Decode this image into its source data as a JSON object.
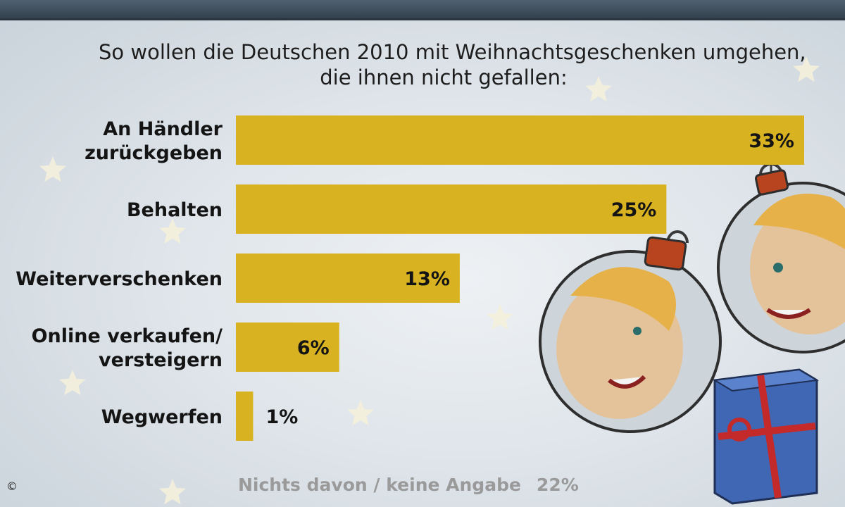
{
  "subtitle": {
    "line1": "So wollen die Deutschen 2010 mit Weihnachtsgeschenken umgehen,",
    "line2": "die ihnen nicht gefallen:"
  },
  "chart_data": {
    "type": "bar",
    "orientation": "horizontal",
    "categories": [
      [
        "An Händler",
        "zurückgeben"
      ],
      [
        "Behalten"
      ],
      [
        "Weiterverschenken"
      ],
      [
        "Online verkaufen/",
        "versteigern"
      ],
      [
        "Wegwerfen"
      ]
    ],
    "values": [
      33,
      25,
      13,
      6,
      1
    ],
    "value_labels": [
      "33%",
      "25%",
      "13%",
      "6%",
      "1%"
    ],
    "unit": "%",
    "bar_color": "#d8b221",
    "xlim": [
      0,
      33
    ],
    "grid": false,
    "legend": "none"
  },
  "footnote": {
    "label": "Nichts davon / keine Angabe",
    "value": "22%"
  },
  "copyright": "©",
  "decoration": {
    "stars_color": "#f4f0dc",
    "ornament_ball_color": "#c9d1d6",
    "ornament_cap_color": "#b8431f",
    "gift_box_color": "#3f67b3",
    "gift_ribbon_color": "#c42a2a"
  }
}
